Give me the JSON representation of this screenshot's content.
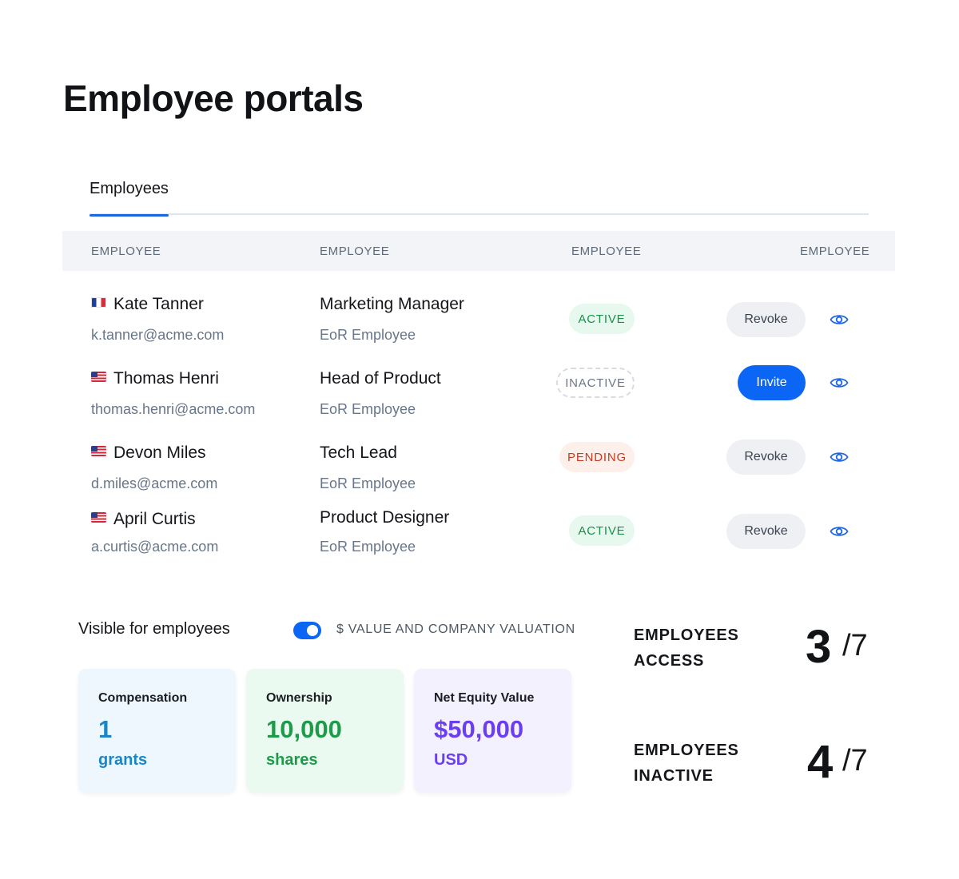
{
  "page": {
    "title": "Employee portals"
  },
  "tabs": [
    {
      "label": "Employees",
      "active": true
    }
  ],
  "table": {
    "headers": [
      "EMPLOYEE",
      "EMPLOYEE",
      "EMPLOYEE",
      "EMPLOYEE"
    ],
    "rows": [
      {
        "flag": "fr-flag",
        "name": "Kate Tanner",
        "email": "k.tanner@acme.com",
        "role": "Marketing Manager",
        "type": "EoR Employee",
        "status": "ACTIVE",
        "action": "Revoke"
      },
      {
        "flag": "us-flag",
        "name": "Thomas Henri",
        "email": "thomas.henri@acme.com",
        "role": "Head of Product",
        "type": "EoR Employee",
        "status": "INACTIVE",
        "action": "Invite"
      },
      {
        "flag": "us-flag",
        "name": "Devon Miles",
        "email": "d.miles@acme.com",
        "role": "Tech Lead",
        "type": "EoR Employee",
        "status": "PENDING",
        "action": "Revoke"
      },
      {
        "flag": "us-flag",
        "name": "April Curtis",
        "email": "a.curtis@acme.com",
        "role": "Product Designer",
        "type": "EoR Employee",
        "status": "ACTIVE",
        "action": "Revoke"
      }
    ]
  },
  "visibility": {
    "label": "Visible for employees",
    "toggle_on": true,
    "toggle_label": "$ VALUE AND COMPANY VALUATION"
  },
  "cards": [
    {
      "title": "Compensation",
      "value": "1",
      "unit": "grants",
      "color": "#1b86c6"
    },
    {
      "title": "Ownership",
      "value": "10,000",
      "unit": "shares",
      "color": "#1d9b48"
    },
    {
      "title": "Net Equity Value",
      "value": "$50,000",
      "unit": "USD",
      "color": "#6c3ef2"
    }
  ],
  "stats": [
    {
      "label_line1": "EMPLOYEES",
      "label_line2": "ACCESS",
      "value": "3",
      "total": "/7"
    },
    {
      "label_line1": "EMPLOYEES",
      "label_line2": "INACTIVE",
      "value": "4",
      "total": "/7"
    }
  ],
  "colors": {
    "accent": "#0b66f6",
    "active": "#1b8f48",
    "pending": "#c73a22"
  }
}
